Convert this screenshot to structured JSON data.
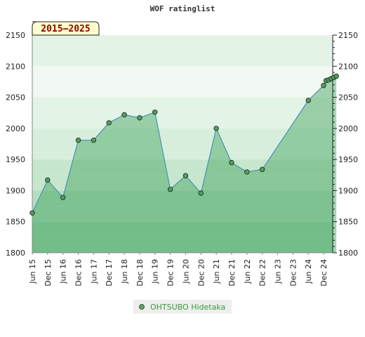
{
  "chart_data": {
    "type": "area",
    "title": "WOF ratinglist",
    "period_label": "2015–2025",
    "ylim": [
      1800,
      2150
    ],
    "y_ticks": [
      1800,
      1850,
      1900,
      1950,
      2000,
      2050,
      2100,
      2150
    ],
    "x_tick_labels": [
      "Jun 15",
      "Dec 15",
      "Jun 16",
      "Dec 16",
      "Jun 17",
      "Dec 17",
      "Jun 18",
      "Dec 18",
      "Jun 19",
      "Dec 19",
      "Jun 20",
      "Dec 20",
      "Jun 21",
      "Dec 21",
      "Jun 22",
      "Dec 22",
      "Jun 23",
      "Dec 23",
      "Jun 24",
      "Dec 24"
    ],
    "grid": true,
    "legend_position": "bottom-center",
    "series": [
      {
        "name": "OHTSUBO Hidetaka",
        "color": "#5aaa5a",
        "points": [
          {
            "x": "Jun 15",
            "y": 1864
          },
          {
            "x": "Dec 15",
            "y": 1917
          },
          {
            "x": "Jun 16",
            "y": 1889
          },
          {
            "x": "Dec 16",
            "y": 1981
          },
          {
            "x": "Jun 17",
            "y": 1981
          },
          {
            "x": "Dec 17",
            "y": 2009
          },
          {
            "x": "Jun 18",
            "y": 2022
          },
          {
            "x": "Dec 18",
            "y": 2017
          },
          {
            "x": "Jun 19",
            "y": 2026
          },
          {
            "x": "Dec 19",
            "y": 1902
          },
          {
            "x": "Jun 20",
            "y": 1924
          },
          {
            "x": "Dec 20",
            "y": 1896
          },
          {
            "x": "Jun 21",
            "y": 2000
          },
          {
            "x": "Dec 21",
            "y": 1945
          },
          {
            "x": "Jun 22",
            "y": 1930
          },
          {
            "x": "Dec 22",
            "y": 1934
          },
          {
            "x": "Jun 24",
            "y": 2045
          },
          {
            "x": "Dec 24",
            "y": 2069
          },
          {
            "x": "Jan 25",
            "y": 2077
          },
          {
            "x": "Feb 25",
            "y": 2078
          },
          {
            "x": "Mar 25",
            "y": 2080
          },
          {
            "x": "Apr 25",
            "y": 2082
          },
          {
            "x": "May 25",
            "y": 2084
          }
        ]
      }
    ]
  }
}
